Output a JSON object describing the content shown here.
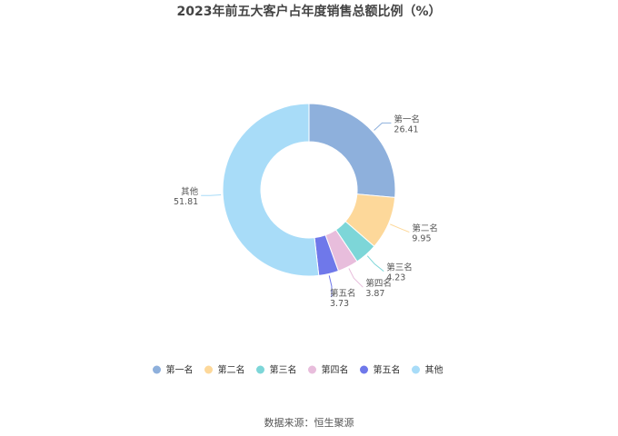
{
  "chart_data": {
    "type": "pie",
    "variant": "donut",
    "title": "2023年前五大客户占年度销售总额比例（%）",
    "categories": [
      "第一名",
      "第二名",
      "第三名",
      "第四名",
      "第五名",
      "其他"
    ],
    "values": [
      26.41,
      9.95,
      4.23,
      3.87,
      3.73,
      51.81
    ],
    "value_labels": [
      "26.41",
      "9.95",
      "4.23",
      "3.87",
      "3.73",
      "51.81"
    ],
    "colors": [
      "#8eb0dc",
      "#fdd89a",
      "#7dd6d8",
      "#e8bddc",
      "#6f78ea",
      "#a8dcf8"
    ],
    "legend_position": "bottom"
  },
  "source": "数据来源：恒生聚源"
}
